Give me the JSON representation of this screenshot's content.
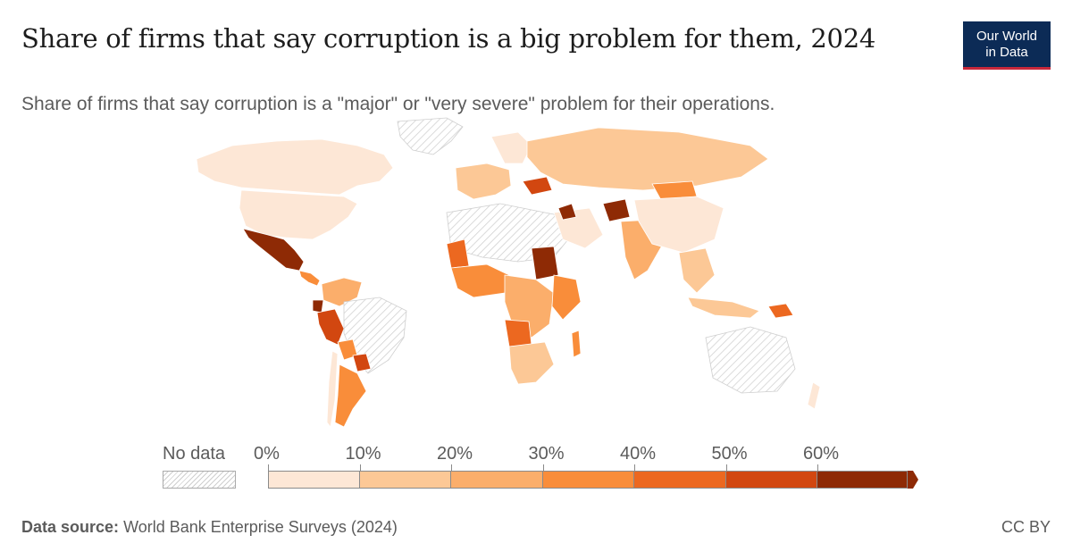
{
  "header": {
    "title": "Share of firms that say corruption is a big problem for them, 2024",
    "subtitle": "Share of firms that say corruption is a \"major\" or \"very severe\" problem for their operations.",
    "logo_line1": "Our World",
    "logo_line2": "in Data"
  },
  "legend": {
    "no_data_label": "No data",
    "ticks": [
      "0%",
      "10%",
      "20%",
      "30%",
      "40%",
      "50%",
      "60%"
    ],
    "colors": [
      "#fde7d6",
      "#fcc896",
      "#fbae6b",
      "#f98d3a",
      "#ec6820",
      "#d24710",
      "#8e2a05"
    ]
  },
  "footer": {
    "source_label": "Data source:",
    "source_text": "World Bank Enterprise Surveys (2024)",
    "license": "CC BY"
  },
  "colors": {
    "no_data_fill": "#ffffff",
    "no_data_hatch": "#cfcfcf",
    "border": "#ffffff",
    "logo_bg": "#0c2b56",
    "logo_accent": "#c8283b"
  }
}
